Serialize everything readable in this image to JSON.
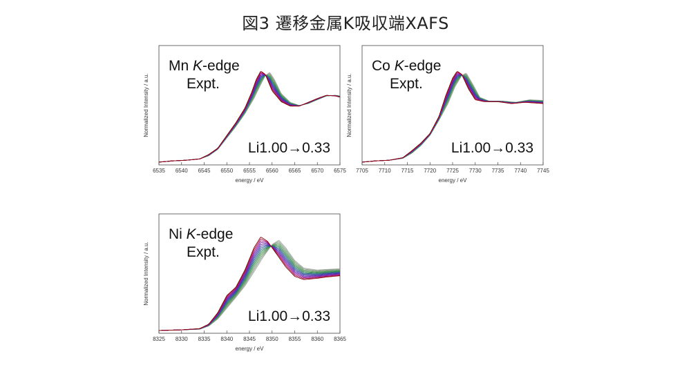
{
  "title": "図3 遷移金属K吸収端XAFS",
  "chart_data": [
    {
      "type": "line",
      "element": "Mn",
      "edge_italic": "K",
      "edge_suffix": "-edge",
      "subtitle": "Expt.",
      "annotation": "Li1.00→0.33",
      "xlabel": "energy / eV",
      "ylabel": "Normalized Intensity / a.u.",
      "xlim": [
        6535,
        6575
      ],
      "xticks": [
        6535,
        6540,
        6545,
        6550,
        6555,
        6560,
        6565,
        6570,
        6575
      ],
      "ylim": [
        0,
        1.55
      ],
      "yticks_labeled": false,
      "n_series": 14,
      "series_colors": [
        "#8b0000",
        "#a01050",
        "#9b1a9b",
        "#7a1aa8",
        "#5a2aa8",
        "#3a3aa8",
        "#304c9a",
        "#2f6a7a",
        "#2f7f5f",
        "#3a8f4a",
        "#5e9a5e",
        "#7a9a7a",
        "#8f9f8f",
        "#a5aba5"
      ],
      "first": [
        [
          6535,
          0.0
        ],
        [
          6538,
          0.02
        ],
        [
          6541,
          0.03
        ],
        [
          6544,
          0.05
        ],
        [
          6546,
          0.12
        ],
        [
          6548,
          0.22
        ],
        [
          6550,
          0.42
        ],
        [
          6552,
          0.62
        ],
        [
          6554,
          0.85
        ],
        [
          6555.5,
          1.1
        ],
        [
          6556.5,
          1.3
        ],
        [
          6557.5,
          1.43
        ],
        [
          6558.5,
          1.38
        ],
        [
          6560,
          1.12
        ],
        [
          6562,
          0.95
        ],
        [
          6564,
          0.88
        ],
        [
          6566,
          0.88
        ],
        [
          6568,
          0.94
        ],
        [
          6570,
          1.0
        ],
        [
          6572,
          1.05
        ],
        [
          6574,
          1.04
        ],
        [
          6575,
          1.02
        ]
      ],
      "last": [
        [
          6535,
          0.0
        ],
        [
          6538,
          0.02
        ],
        [
          6541,
          0.03
        ],
        [
          6544,
          0.05
        ],
        [
          6546,
          0.1
        ],
        [
          6548,
          0.2
        ],
        [
          6550,
          0.38
        ],
        [
          6552,
          0.56
        ],
        [
          6554,
          0.76
        ],
        [
          6556,
          1.0
        ],
        [
          6557.5,
          1.22
        ],
        [
          6558.5,
          1.36
        ],
        [
          6559.5,
          1.41
        ],
        [
          6560.5,
          1.3
        ],
        [
          6562,
          1.08
        ],
        [
          6564,
          0.94
        ],
        [
          6566,
          0.89
        ],
        [
          6568,
          0.92
        ],
        [
          6570,
          0.98
        ],
        [
          6572,
          1.04
        ],
        [
          6574,
          1.05
        ],
        [
          6575,
          1.04
        ]
      ]
    },
    {
      "type": "line",
      "element": "Co",
      "edge_italic": "K",
      "edge_suffix": "-edge",
      "subtitle": "Expt.",
      "annotation": "Li1.00→0.33",
      "xlabel": "energy / eV",
      "ylabel": "Normalized Intensity / a.u.",
      "xlim": [
        7705,
        7745
      ],
      "xticks": [
        7705,
        7710,
        7715,
        7720,
        7725,
        7730,
        7735,
        7740,
        7745
      ],
      "ylim": [
        0,
        1.55
      ],
      "yticks_labeled": false,
      "n_series": 14,
      "series_colors": [
        "#8b0000",
        "#a01050",
        "#9b1a9b",
        "#7a1aa8",
        "#5a2aa8",
        "#3a3aa8",
        "#304c9a",
        "#2f6a7a",
        "#2f7f5f",
        "#3a8f4a",
        "#5e9a5e",
        "#7a9a7a",
        "#8f9f8f",
        "#a5aba5"
      ],
      "first": [
        [
          7705,
          0.0
        ],
        [
          7708,
          0.02
        ],
        [
          7711,
          0.03
        ],
        [
          7714,
          0.07
        ],
        [
          7716,
          0.18
        ],
        [
          7718,
          0.3
        ],
        [
          7720,
          0.45
        ],
        [
          7722,
          0.72
        ],
        [
          7723.5,
          1.05
        ],
        [
          7725,
          1.32
        ],
        [
          7726,
          1.43
        ],
        [
          7727,
          1.38
        ],
        [
          7728.5,
          1.15
        ],
        [
          7730,
          0.98
        ],
        [
          7732,
          0.95
        ],
        [
          7735,
          0.95
        ],
        [
          7738,
          0.92
        ],
        [
          7741,
          0.94
        ],
        [
          7745,
          0.92
        ]
      ],
      "last": [
        [
          7705,
          0.0
        ],
        [
          7708,
          0.02
        ],
        [
          7711,
          0.03
        ],
        [
          7714,
          0.06
        ],
        [
          7716,
          0.14
        ],
        [
          7718,
          0.26
        ],
        [
          7720,
          0.42
        ],
        [
          7722,
          0.66
        ],
        [
          7724,
          0.92
        ],
        [
          7725.5,
          1.18
        ],
        [
          7727,
          1.36
        ],
        [
          7728,
          1.4
        ],
        [
          7729.5,
          1.22
        ],
        [
          7731,
          1.02
        ],
        [
          7733,
          0.96
        ],
        [
          7736,
          0.96
        ],
        [
          7739,
          0.94
        ],
        [
          7742,
          0.98
        ],
        [
          7745,
          0.97
        ]
      ]
    },
    {
      "type": "line",
      "element": "Ni",
      "edge_italic": "K",
      "edge_suffix": "-edge",
      "subtitle": "Expt.",
      "annotation": "Li1.00→0.33",
      "xlabel": "energy / eV",
      "ylabel": "Normalized Intensity / a.u.",
      "xlim": [
        8325,
        8365
      ],
      "xticks": [
        8325,
        8330,
        8335,
        8340,
        8345,
        8350,
        8355,
        8360,
        8365
      ],
      "ylim": [
        0,
        1.55
      ],
      "yticks_labeled": false,
      "n_series": 14,
      "series_colors": [
        "#8b0000",
        "#a01050",
        "#9b1a9b",
        "#7a1aa8",
        "#5a2aa8",
        "#3a3aa8",
        "#304c9a",
        "#2f6a7a",
        "#2f7f5f",
        "#3a8f4a",
        "#5e9a5e",
        "#7a9a7a",
        "#8f9f8f",
        "#a5aba5"
      ],
      "first": [
        [
          8325,
          0.0
        ],
        [
          8330,
          0.01
        ],
        [
          8334,
          0.03
        ],
        [
          8336,
          0.1
        ],
        [
          8338,
          0.28
        ],
        [
          8340,
          0.55
        ],
        [
          8342,
          0.68
        ],
        [
          8344,
          0.95
        ],
        [
          8346,
          1.3
        ],
        [
          8347.5,
          1.47
        ],
        [
          8349,
          1.4
        ],
        [
          8351,
          1.2
        ],
        [
          8353,
          1.0
        ],
        [
          8355,
          0.85
        ],
        [
          8357,
          0.8
        ],
        [
          8360,
          0.82
        ],
        [
          8362,
          0.84
        ],
        [
          8365,
          0.86
        ]
      ],
      "last": [
        [
          8325,
          0.0
        ],
        [
          8330,
          0.01
        ],
        [
          8334,
          0.02
        ],
        [
          8336,
          0.07
        ],
        [
          8338,
          0.18
        ],
        [
          8340,
          0.35
        ],
        [
          8342,
          0.52
        ],
        [
          8344,
          0.7
        ],
        [
          8346,
          0.92
        ],
        [
          8348,
          1.15
        ],
        [
          8350,
          1.35
        ],
        [
          8351.5,
          1.42
        ],
        [
          8353,
          1.3
        ],
        [
          8355,
          1.1
        ],
        [
          8357,
          0.98
        ],
        [
          8360,
          0.95
        ],
        [
          8362,
          0.96
        ],
        [
          8365,
          0.97
        ]
      ]
    }
  ]
}
